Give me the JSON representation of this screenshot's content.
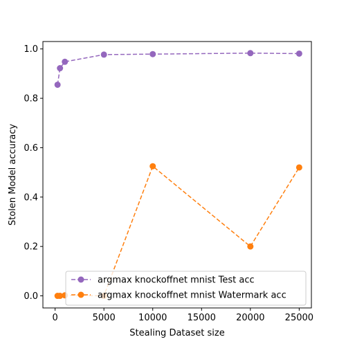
{
  "chart_data": {
    "type": "line",
    "title": "",
    "xlabel": "Stealing Dataset size",
    "ylabel": "Stolen Model accuracy",
    "xlim": [
      -1250,
      26250
    ],
    "ylim": [
      -0.049,
      1.03
    ],
    "xticks": [
      0,
      5000,
      10000,
      15000,
      20000,
      25000
    ],
    "xtick_labels": [
      "0",
      "5000",
      "10000",
      "15000",
      "20000",
      "25000"
    ],
    "yticks": [
      0.0,
      0.2,
      0.4,
      0.6,
      0.8,
      1.0
    ],
    "ytick_labels": [
      "0.0",
      "0.2",
      "0.4",
      "0.6",
      "0.8",
      "1.0"
    ],
    "grid": false,
    "legend_position": "lower-right",
    "series": [
      {
        "name": "argmax knockoffnet mnist Test acc",
        "color": "#9467bd",
        "line_style": "dashed",
        "marker": "circle",
        "x": [
          250,
          500,
          1000,
          5000,
          10000,
          20000,
          25000
        ],
        "y": [
          0.855,
          0.922,
          0.948,
          0.977,
          0.979,
          0.983,
          0.981
        ]
      },
      {
        "name": "argmax knockoffnet mnist Watermark acc",
        "color": "#ff7f0e",
        "line_style": "dashed",
        "marker": "circle",
        "x": [
          250,
          500,
          1000,
          5000,
          10000,
          20000,
          25000
        ],
        "y": [
          0.0,
          0.0,
          0.002,
          0.0,
          0.525,
          0.2,
          0.52
        ]
      }
    ]
  }
}
